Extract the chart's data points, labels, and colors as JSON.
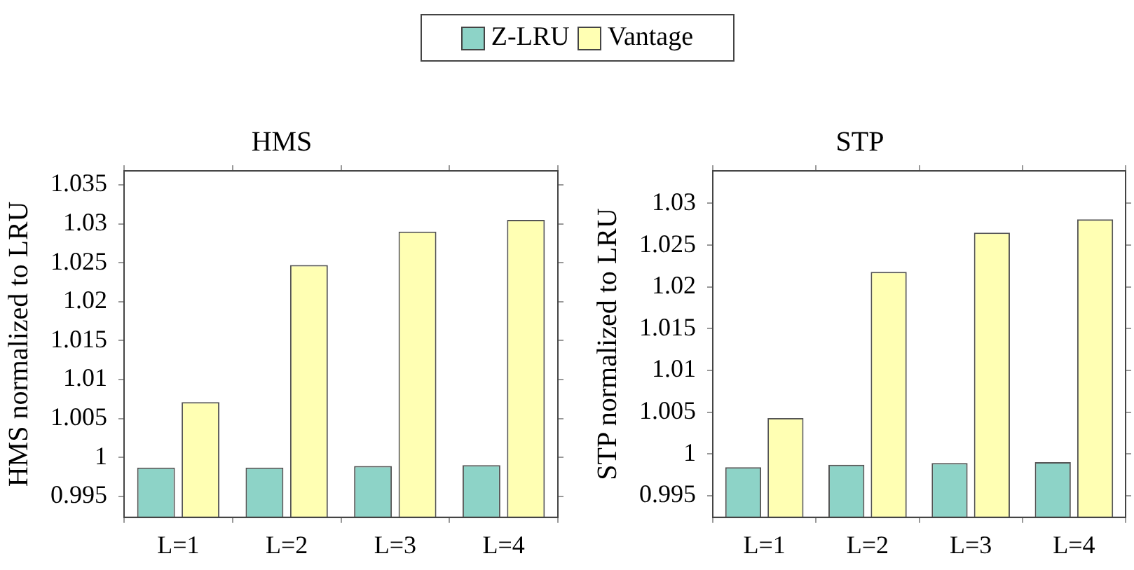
{
  "chart_data": [
    {
      "type": "bar",
      "title": "HMS",
      "ylabel": "HMS normalized to LRU",
      "categories": [
        "L=1",
        "L=2",
        "L=3",
        "L=4"
      ],
      "series": [
        {
          "name": "Z-LRU",
          "color": "#8dd3c7",
          "values": [
            0.9987,
            0.9987,
            0.9989,
            0.999
          ]
        },
        {
          "name": "Vantage",
          "color": "#ffffb3",
          "values": [
            1.0071,
            1.0247,
            1.029,
            1.0305
          ]
        }
      ],
      "ylim": [
        0.9923,
        1.0368
      ],
      "yticks": [
        0.995,
        1,
        1.005,
        1.01,
        1.015,
        1.02,
        1.025,
        1.03,
        1.035
      ],
      "grid": false,
      "legend": "top"
    },
    {
      "type": "bar",
      "title": "STP",
      "ylabel": "STP normalized to LRU",
      "categories": [
        "L=1",
        "L=2",
        "L=3",
        "L=4"
      ],
      "series": [
        {
          "name": "Z-LRU",
          "color": "#8dd3c7",
          "values": [
            0.9984,
            0.9987,
            0.9989,
            0.999
          ]
        },
        {
          "name": "Vantage",
          "color": "#ffffb3",
          "values": [
            1.0043,
            1.0218,
            1.0265,
            1.0281
          ]
        }
      ],
      "ylim": [
        0.9924,
        1.0339
      ],
      "yticks": [
        0.995,
        1,
        1.005,
        1.01,
        1.015,
        1.02,
        1.025,
        1.03
      ],
      "grid": false,
      "legend": "top"
    }
  ]
}
